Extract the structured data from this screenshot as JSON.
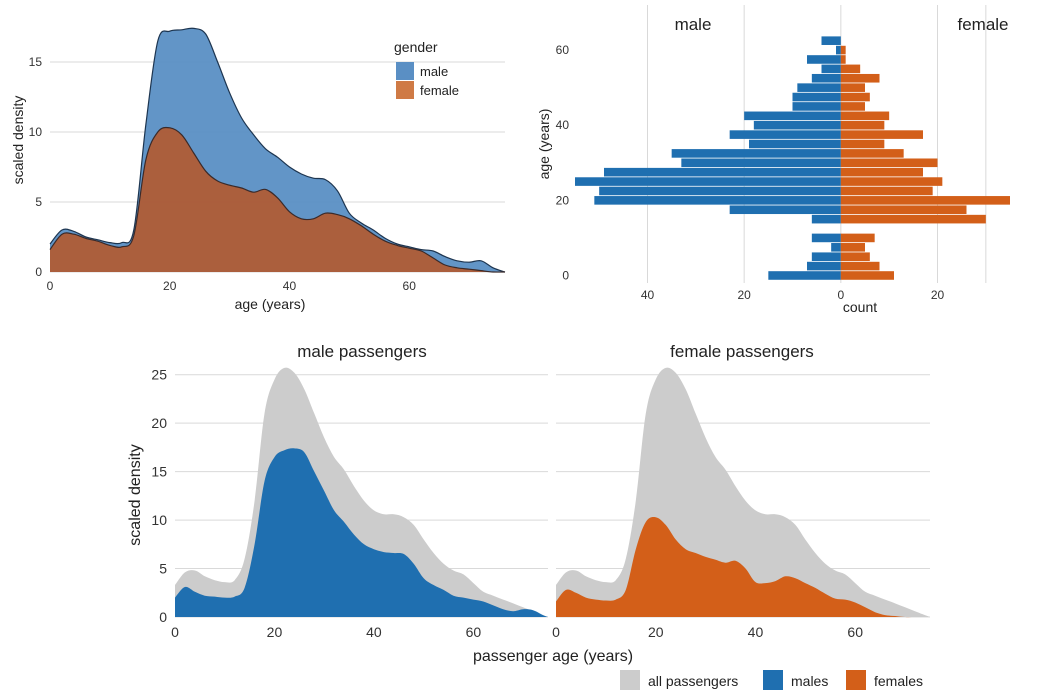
{
  "colors": {
    "male": "#1f6fb0",
    "female": "#d35f19",
    "male_fill_light": "#5a8fc4",
    "female_fill_light": "#cf7a45",
    "all": "#cccccc"
  },
  "chart_data": [
    {
      "type": "area",
      "panel": "overlapping-density",
      "xlabel": "age (years)",
      "ylabel": "scaled density",
      "xlim": [
        0,
        76
      ],
      "ylim": [
        0,
        18
      ],
      "x_ticks": [
        0,
        20,
        40,
        60
      ],
      "y_ticks": [
        0,
        5,
        10,
        15
      ],
      "legend": {
        "title": "gender",
        "position": "top-right"
      },
      "x": [
        0,
        2,
        4,
        6,
        8,
        10,
        12,
        14,
        16,
        18,
        20,
        22,
        24,
        26,
        28,
        30,
        32,
        34,
        36,
        38,
        40,
        42,
        44,
        46,
        48,
        50,
        52,
        54,
        56,
        58,
        60,
        62,
        64,
        66,
        68,
        70,
        72,
        74,
        76
      ],
      "series": [
        {
          "name": "male",
          "values": [
            2.0,
            3.0,
            2.9,
            2.5,
            2.3,
            2.1,
            2.1,
            3.0,
            10.5,
            16.5,
            17.2,
            17.3,
            17.4,
            17.0,
            15.0,
            12.8,
            11.0,
            9.8,
            8.8,
            8.2,
            7.5,
            7.0,
            6.7,
            6.6,
            5.8,
            4.2,
            3.5,
            3.0,
            2.4,
            2.0,
            1.8,
            1.6,
            1.5,
            1.1,
            0.8,
            0.7,
            0.8,
            0.3,
            0.0
          ]
        },
        {
          "name": "female",
          "values": [
            1.6,
            2.7,
            2.7,
            2.4,
            2.2,
            1.9,
            1.8,
            2.6,
            8.0,
            10.0,
            10.3,
            9.8,
            8.5,
            7.2,
            6.5,
            6.2,
            6.0,
            5.7,
            5.9,
            5.3,
            4.3,
            3.8,
            3.8,
            4.2,
            4.1,
            3.8,
            3.3,
            2.7,
            2.2,
            1.9,
            1.7,
            1.5,
            1.0,
            0.5,
            0.3,
            0.2,
            0.1,
            0.0,
            0.0
          ]
        }
      ]
    },
    {
      "type": "bar",
      "panel": "age-pyramid",
      "xlabel": "count",
      "ylabel": "age (years)",
      "xlim": [
        -55,
        35
      ],
      "ylim": [
        -2,
        72
      ],
      "x_ticks": [
        -40,
        -20,
        0,
        20
      ],
      "x_tick_labels": [
        "40",
        "20",
        "0",
        "20"
      ],
      "y_ticks": [
        0,
        20,
        40,
        60
      ],
      "bin_width": 2.5,
      "side_labels": {
        "left": "male",
        "right": "female"
      },
      "categories": [
        0,
        2.5,
        5,
        7.5,
        10,
        12.5,
        15,
        17.5,
        20,
        22.5,
        25,
        27.5,
        30,
        32.5,
        35,
        37.5,
        40,
        42.5,
        45,
        47.5,
        50,
        52.5,
        55,
        57.5,
        60,
        62.5,
        65,
        67.5,
        70
      ],
      "series": [
        {
          "name": "male",
          "values": [
            15,
            7,
            6,
            2,
            6,
            0,
            6,
            23,
            51,
            50,
            55,
            49,
            33,
            35,
            19,
            23,
            18,
            20,
            10,
            10,
            9,
            6,
            4,
            7,
            1,
            4,
            0,
            0,
            0
          ]
        },
        {
          "name": "female",
          "values": [
            11,
            8,
            6,
            5,
            7,
            0,
            30,
            26,
            35,
            19,
            21,
            17,
            20,
            13,
            9,
            17,
            9,
            10,
            5,
            6,
            5,
            8,
            4,
            1,
            1,
            0,
            0,
            0,
            0
          ]
        }
      ]
    },
    {
      "type": "area",
      "panel": "male-passengers",
      "title": "male passengers",
      "xlim": [
        0,
        75
      ],
      "ylim": [
        0,
        26
      ],
      "x_ticks": [
        0,
        20,
        40,
        60
      ],
      "y_ticks": [
        0,
        5,
        10,
        15,
        20,
        25
      ],
      "x": [
        0,
        2,
        4,
        6,
        8,
        10,
        12,
        14,
        16,
        18,
        20,
        22,
        24,
        26,
        28,
        30,
        32,
        34,
        36,
        38,
        40,
        42,
        44,
        46,
        48,
        50,
        52,
        54,
        56,
        58,
        60,
        62,
        64,
        66,
        68,
        70,
        72,
        74,
        75
      ],
      "series": [
        {
          "name": "all passengers",
          "values": [
            3.3,
            4.6,
            4.8,
            4.2,
            3.8,
            3.6,
            3.8,
            6.0,
            12.0,
            21.0,
            24.5,
            25.7,
            25.2,
            23.5,
            21.0,
            18.5,
            16.5,
            15.2,
            13.5,
            12.0,
            11.0,
            10.6,
            10.6,
            10.3,
            9.5,
            8.0,
            6.6,
            5.5,
            4.8,
            4.4,
            3.5,
            2.6,
            2.2,
            1.8,
            1.4,
            1.0,
            0.6,
            0.2,
            0.0
          ]
        },
        {
          "name": "males",
          "values": [
            2.0,
            3.1,
            2.6,
            2.2,
            2.1,
            2.0,
            2.1,
            3.0,
            7.5,
            14.0,
            16.5,
            17.2,
            17.4,
            17.0,
            15.0,
            13.0,
            11.0,
            9.8,
            8.5,
            7.5,
            7.0,
            6.7,
            6.6,
            6.5,
            5.5,
            4.0,
            3.3,
            2.8,
            2.2,
            2.0,
            1.8,
            1.6,
            1.2,
            0.8,
            0.6,
            0.8,
            0.7,
            0.2,
            0.0
          ]
        }
      ]
    },
    {
      "type": "area",
      "panel": "female-passengers",
      "title": "female passengers",
      "xlim": [
        0,
        75
      ],
      "ylim": [
        0,
        26
      ],
      "x_ticks": [
        0,
        20,
        40,
        60
      ],
      "y_ticks": [
        0,
        5,
        10,
        15,
        20,
        25
      ],
      "x": [
        0,
        2,
        4,
        6,
        8,
        10,
        12,
        14,
        16,
        18,
        20,
        22,
        24,
        26,
        28,
        30,
        32,
        34,
        36,
        38,
        40,
        42,
        44,
        46,
        48,
        50,
        52,
        54,
        56,
        58,
        60,
        62,
        64,
        66,
        68,
        70,
        72,
        74,
        75
      ],
      "series": [
        {
          "name": "all passengers",
          "values": [
            3.3,
            4.6,
            4.8,
            4.2,
            3.8,
            3.6,
            3.8,
            6.0,
            12.0,
            21.0,
            24.5,
            25.7,
            25.2,
            23.5,
            21.0,
            18.5,
            16.5,
            15.2,
            13.5,
            12.0,
            11.0,
            10.6,
            10.6,
            10.3,
            9.5,
            8.0,
            6.6,
            5.5,
            4.8,
            4.4,
            3.5,
            2.6,
            2.2,
            1.8,
            1.4,
            1.0,
            0.6,
            0.2,
            0.0
          ]
        },
        {
          "name": "females",
          "values": [
            1.6,
            2.8,
            2.5,
            2.0,
            1.8,
            1.7,
            1.8,
            2.8,
            7.0,
            9.8,
            10.3,
            9.5,
            8.0,
            7.0,
            6.6,
            6.2,
            5.9,
            5.6,
            5.8,
            5.0,
            3.6,
            3.5,
            3.7,
            4.2,
            4.0,
            3.5,
            3.0,
            2.4,
            1.9,
            1.8,
            1.5,
            1.0,
            0.5,
            0.2,
            0.1,
            0.0,
            0.0,
            0.0,
            0.0
          ]
        }
      ]
    }
  ],
  "shared_labels": {
    "bottom_xlabel": "passenger age (years)",
    "bottom_ylabel": "scaled density"
  },
  "bottom_legend": {
    "items": [
      {
        "label": "all passengers",
        "color": "#cccccc"
      },
      {
        "label": "males",
        "color": "#1f6fb0"
      },
      {
        "label": "females",
        "color": "#d35f19"
      }
    ]
  }
}
